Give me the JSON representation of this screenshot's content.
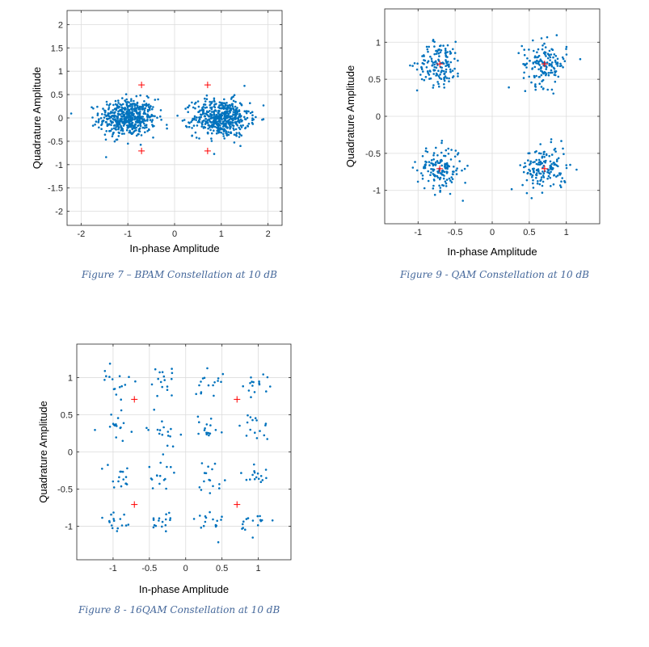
{
  "charts": [
    {
      "chart_data": {
        "type": "scatter",
        "title": "",
        "xlabel": "In-phase Amplitude",
        "ylabel": "Quadrature Amplitude",
        "xlim": [
          -2.3,
          2.3
        ],
        "ylim": [
          -2.3,
          2.3
        ],
        "xticks": [
          -2,
          -1,
          0,
          1,
          2
        ],
        "xtick_labels": [
          "-2",
          "-1",
          "0",
          "1",
          "2"
        ],
        "yticks": [
          2,
          1.5,
          1,
          0.5,
          0,
          -0.5,
          -1,
          -1.5,
          -2
        ],
        "ytick_labels": [
          "2",
          "1.5",
          "1",
          "0.5",
          "0",
          "-0.5",
          "-1",
          "-1.5",
          "-2"
        ],
        "grid": true,
        "received_clusters": [
          {
            "center": [
              -1,
              0
            ],
            "spread_x": 0.3,
            "spread_y": 0.2,
            "count": 520
          },
          {
            "center": [
              1,
              0
            ],
            "spread_x": 0.3,
            "spread_y": 0.2,
            "count": 520
          }
        ],
        "reference_points": [
          [
            -0.707,
            0.707
          ],
          [
            0.707,
            0.707
          ],
          [
            -0.707,
            -0.707
          ],
          [
            0.707,
            -0.707
          ]
        ],
        "point_color": "#0072bd",
        "reference_color": "#ff0000"
      },
      "caption": "Figure 7 – BPAM Constellation at 10 dB"
    },
    {
      "chart_data": {
        "type": "scatter",
        "title": "",
        "xlabel": "In-phase Amplitude",
        "ylabel": "Quadrature Amplitude",
        "xlim": [
          -1.45,
          1.45
        ],
        "ylim": [
          -1.45,
          1.45
        ],
        "xticks": [
          -1,
          -0.5,
          0,
          0.5,
          1
        ],
        "xtick_labels": [
          "-1",
          "-0.5",
          "0",
          "0.5",
          "1"
        ],
        "yticks": [
          1,
          0.5,
          0,
          -0.5,
          -1
        ],
        "ytick_labels": [
          "1",
          "0.5",
          "0",
          "-0.5",
          "-1"
        ],
        "grid": true,
        "received_clusters": [
          {
            "center": [
              -0.707,
              0.707
            ],
            "spread_x": 0.15,
            "spread_y": 0.15,
            "count": 150
          },
          {
            "center": [
              0.707,
              0.707
            ],
            "spread_x": 0.15,
            "spread_y": 0.15,
            "count": 150
          },
          {
            "center": [
              -0.707,
              -0.707
            ],
            "spread_x": 0.15,
            "spread_y": 0.15,
            "count": 150
          },
          {
            "center": [
              0.707,
              -0.707
            ],
            "spread_x": 0.15,
            "spread_y": 0.15,
            "count": 150
          }
        ],
        "reference_points": [
          [
            -0.707,
            0.707
          ],
          [
            0.707,
            0.707
          ],
          [
            -0.707,
            -0.707
          ],
          [
            0.707,
            -0.707
          ]
        ],
        "point_color": "#0072bd",
        "reference_color": "#ff0000"
      },
      "caption": "Figure 9 - QAM Constellation at 10 dB"
    },
    {
      "chart_data": {
        "type": "scatter",
        "title": "",
        "xlabel": "In-phase Amplitude",
        "ylabel": "Quadrature Amplitude",
        "xlim": [
          -1.5,
          1.45
        ],
        "ylim": [
          -1.45,
          1.45
        ],
        "xticks": [
          -1,
          -0.5,
          0,
          0.5,
          1
        ],
        "xtick_labels": [
          "-1",
          "-0.5",
          "0",
          "0.5",
          "1"
        ],
        "yticks": [
          1,
          0.5,
          0,
          -0.5,
          -1
        ],
        "ytick_labels": [
          "1",
          "0.5",
          "0",
          "-0.5",
          "-1"
        ],
        "grid": true,
        "received_clusters": [
          {
            "center": [
              -0.95,
              0.95
            ],
            "spread_x": 0.1,
            "spread_y": 0.1,
            "count": 16
          },
          {
            "center": [
              -0.32,
              0.95
            ],
            "spread_x": 0.1,
            "spread_y": 0.1,
            "count": 16
          },
          {
            "center": [
              0.32,
              0.95
            ],
            "spread_x": 0.1,
            "spread_y": 0.1,
            "count": 16
          },
          {
            "center": [
              0.95,
              0.95
            ],
            "spread_x": 0.1,
            "spread_y": 0.1,
            "count": 16
          },
          {
            "center": [
              -0.95,
              0.32
            ],
            "spread_x": 0.1,
            "spread_y": 0.1,
            "count": 16
          },
          {
            "center": [
              -0.32,
              0.32
            ],
            "spread_x": 0.1,
            "spread_y": 0.1,
            "count": 16
          },
          {
            "center": [
              0.32,
              0.32
            ],
            "spread_x": 0.1,
            "spread_y": 0.1,
            "count": 16
          },
          {
            "center": [
              0.95,
              0.32
            ],
            "spread_x": 0.1,
            "spread_y": 0.1,
            "count": 16
          },
          {
            "center": [
              -0.95,
              -0.32
            ],
            "spread_x": 0.1,
            "spread_y": 0.1,
            "count": 16
          },
          {
            "center": [
              -0.32,
              -0.32
            ],
            "spread_x": 0.1,
            "spread_y": 0.1,
            "count": 16
          },
          {
            "center": [
              0.32,
              -0.32
            ],
            "spread_x": 0.1,
            "spread_y": 0.1,
            "count": 16
          },
          {
            "center": [
              0.95,
              -0.32
            ],
            "spread_x": 0.1,
            "spread_y": 0.1,
            "count": 16
          },
          {
            "center": [
              -0.95,
              -0.95
            ],
            "spread_x": 0.1,
            "spread_y": 0.1,
            "count": 16
          },
          {
            "center": [
              -0.32,
              -0.95
            ],
            "spread_x": 0.1,
            "spread_y": 0.1,
            "count": 16
          },
          {
            "center": [
              0.32,
              -0.95
            ],
            "spread_x": 0.1,
            "spread_y": 0.1,
            "count": 16
          },
          {
            "center": [
              0.95,
              -0.95
            ],
            "spread_x": 0.1,
            "spread_y": 0.1,
            "count": 16
          }
        ],
        "reference_points": [
          [
            -0.707,
            0.707
          ],
          [
            0.707,
            0.707
          ],
          [
            -0.707,
            -0.707
          ],
          [
            0.707,
            -0.707
          ]
        ],
        "point_color": "#0072bd",
        "reference_color": "#ff0000"
      },
      "caption": "Figure 8 - 16QAM Constellation at 10 dB"
    }
  ]
}
